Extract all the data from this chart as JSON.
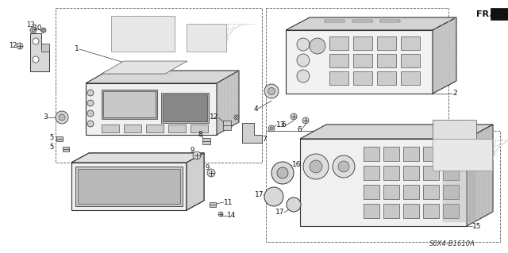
{
  "background_color": "#ffffff",
  "diagram_code": "S0X4-B1610A",
  "fr_label": "FR.",
  "figsize": [
    6.4,
    3.19
  ],
  "dpi": 100,
  "line_color": "#333333",
  "light_gray": "#d8d8d8",
  "mid_gray": "#b0b0b0",
  "dark_gray": "#888888",
  "very_light": "#f0f0f0",
  "label_font_size": 6.0
}
